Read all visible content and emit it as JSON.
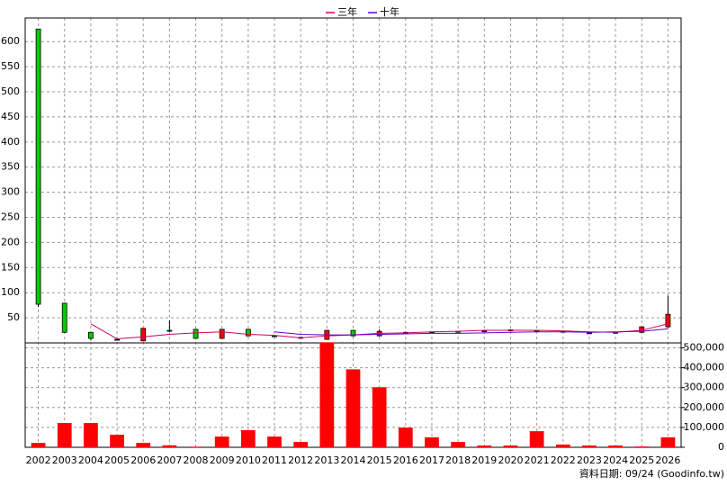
{
  "chart_data": {
    "type": "candlestick",
    "categories": [
      "2002",
      "2003",
      "2004",
      "2005",
      "2006",
      "2007",
      "2008",
      "2009",
      "2010",
      "2011",
      "2012",
      "2013",
      "2014",
      "2015",
      "2016",
      "2017",
      "2018",
      "2019",
      "2020",
      "2021",
      "2022",
      "2023",
      "2024",
      "2025",
      "2026"
    ],
    "open": [
      625,
      79,
      21,
      7,
      4,
      25,
      27,
      9,
      27,
      14,
      11,
      7,
      25,
      14,
      21,
      22,
      23,
      24,
      26,
      25,
      23,
      20,
      21,
      21,
      32
    ],
    "close": [
      77,
      21,
      9,
      6,
      29,
      24,
      9,
      27,
      14,
      13,
      10,
      25,
      14,
      23,
      20,
      21,
      22,
      23,
      25,
      24,
      22,
      19,
      20,
      32,
      57
    ],
    "high": [
      625,
      80,
      22,
      8,
      29,
      45,
      28,
      28,
      28,
      15,
      12,
      26,
      26,
      27,
      22,
      23,
      24,
      25,
      27,
      26,
      24,
      21,
      22,
      33,
      94
    ],
    "low": [
      72,
      20,
      5,
      5,
      3,
      22,
      8,
      8,
      13,
      12,
      9,
      6,
      13,
      13,
      19,
      20,
      21,
      22,
      24,
      23,
      21,
      18,
      19,
      20,
      30
    ],
    "up_color": "#ff0000",
    "down_color": "#00cc00",
    "series": [
      {
        "name": "三年",
        "color": "#cc0066",
        "values": [
          null,
          null,
          38,
          8,
          12,
          17,
          20,
          22,
          17,
          15,
          10,
          14,
          16,
          19,
          20,
          22,
          23,
          25,
          25,
          25,
          24,
          22,
          21,
          25,
          38
        ]
      },
      {
        "name": "十年",
        "color": "#6600cc",
        "values": [
          null,
          null,
          null,
          null,
          null,
          null,
          null,
          null,
          null,
          22,
          17,
          16,
          16,
          17,
          18,
          19,
          19,
          20,
          21,
          22,
          22,
          21,
          22,
          23,
          28
        ]
      }
    ],
    "ylim": [
      0,
      647
    ],
    "yticks": [
      50,
      100,
      150,
      200,
      250,
      300,
      350,
      400,
      450,
      500,
      550,
      600
    ],
    "grid": true,
    "legend": "top",
    "volume": {
      "color": "#ff0000",
      "values": [
        22000,
        122000,
        122000,
        63000,
        22000,
        10000,
        3000,
        54000,
        86000,
        54000,
        27000,
        528000,
        392000,
        302000,
        99000,
        50000,
        27000,
        9000,
        9000,
        81000,
        14000,
        9000,
        9000,
        4000,
        50000
      ],
      "ylim": [
        0,
        525000
      ],
      "yticks": [
        0,
        {
          "value": 100000,
          "label": "100,000"
        },
        {
          "value": 200000,
          "label": "200,000"
        },
        {
          "value": 300000,
          "label": "300,000"
        },
        {
          "value": 400000,
          "label": "400,000"
        },
        {
          "value": 500000,
          "label": "500,000"
        }
      ]
    },
    "footer": "資料日期: 09/24 (Goodinfo.tw)"
  }
}
